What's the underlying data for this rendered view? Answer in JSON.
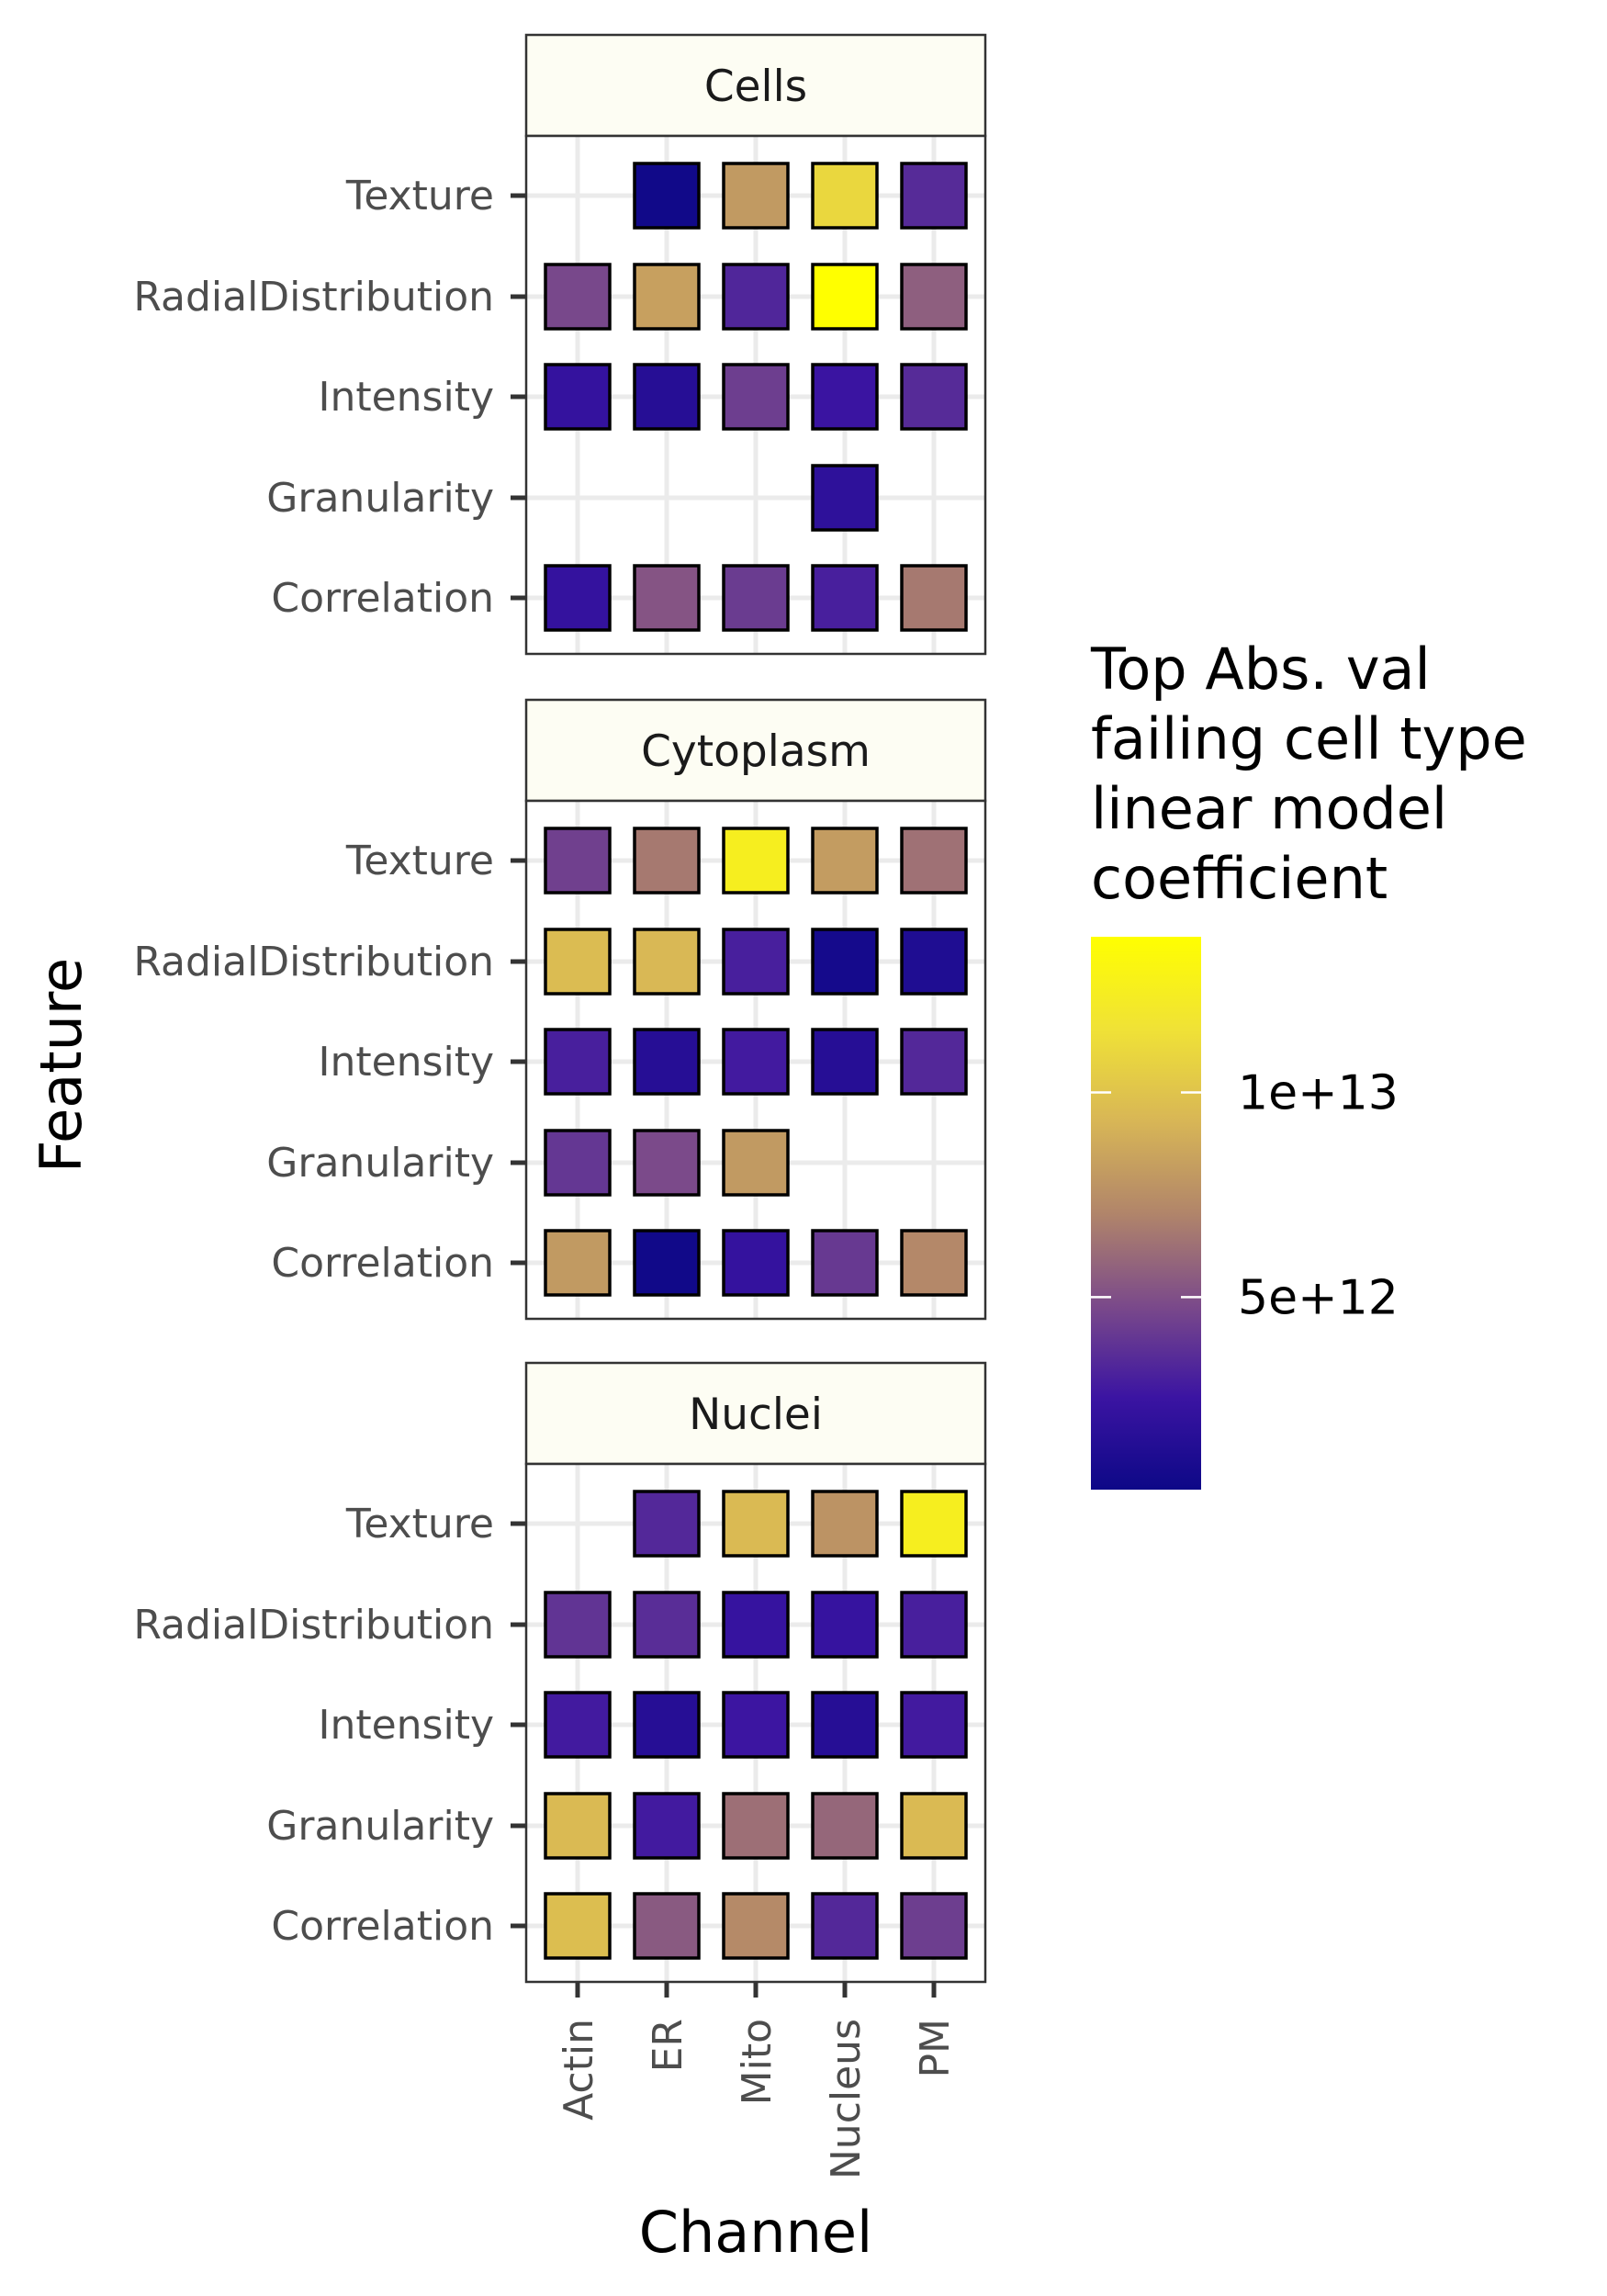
{
  "chart_data": {
    "type": "heatmap",
    "facets": [
      "Cells",
      "Cytoplasm",
      "Nuclei"
    ],
    "x": [
      "Actin",
      "ER",
      "Mito",
      "Nucleus",
      "PM"
    ],
    "y": [
      "Texture",
      "RadialDistribution",
      "Intensity",
      "Granularity",
      "Correlation"
    ],
    "xlabel": "Channel",
    "ylabel": "Feature",
    "legend": {
      "title": [
        "Top Abs. val",
        "failing cell type",
        "linear model",
        "coefficient"
      ],
      "ticks": [
        {
          "value": 10000000000000,
          "label": "1e+13"
        },
        {
          "value": 5000000000000,
          "label": "5e+12"
        }
      ],
      "range": [
        300000000000,
        13800000000000
      ],
      "colors": [
        "#0d0887",
        "#3b14a2",
        "#7b4a8a",
        "#b1856a",
        "#d8b656",
        "#f0e236",
        "#ffff00"
      ],
      "position": "right"
    },
    "values": {
      "Cells": [
        [
          null,
          500000000000,
          8000000000000,
          11000000000000,
          3500000000000
        ],
        [
          4700000000000,
          8300000000000,
          3300000000000,
          13800000000000,
          5600000000000
        ],
        [
          2200000000000,
          1500000000000,
          4300000000000,
          2500000000000,
          3500000000000
        ],
        [
          null,
          null,
          null,
          1900000000000,
          null
        ],
        [
          2200000000000,
          5200000000000,
          4200000000000,
          3000000000000,
          6600000000000
        ]
      ],
      "Cytoplasm": [
        [
          4400000000000,
          6600000000000,
          12500000000000,
          8100000000000,
          6300000000000
        ],
        [
          9600000000000,
          9400000000000,
          3000000000000,
          700000000000,
          1200000000000
        ],
        [
          3000000000000,
          1500000000000,
          2800000000000,
          1500000000000,
          3400000000000
        ],
        [
          4000000000000,
          4800000000000,
          8000000000000,
          null,
          null
        ],
        [
          8000000000000,
          500000000000,
          2200000000000,
          4100000000000,
          7200000000000
        ]
      ],
      "Nuclei": [
        [
          null,
          3400000000000,
          9500000000000,
          7700000000000,
          12500000000000
        ],
        [
          3900000000000,
          3600000000000,
          2300000000000,
          2300000000000,
          3000000000000
        ],
        [
          2800000000000,
          1500000000000,
          2600000000000,
          1500000000000,
          2800000000000
        ],
        [
          9500000000000,
          2800000000000,
          6200000000000,
          5900000000000,
          9500000000000
        ],
        [
          9700000000000,
          5400000000000,
          7300000000000,
          3400000000000,
          4300000000000
        ]
      ]
    }
  }
}
